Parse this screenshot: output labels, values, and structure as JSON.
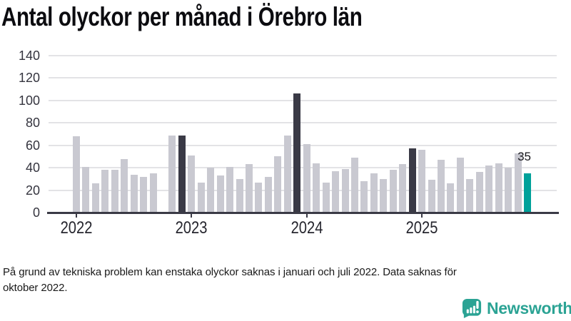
{
  "title": "Antal olyckor per månad i Örebro län",
  "footnote": {
    "lines": [
      "På grund av tekniska problem kan enstaka olyckor saknas i januari och juli 2022. Data saknas för",
      "oktober 2022."
    ]
  },
  "branding": {
    "name": "Newsworthy",
    "icon": "newsworthy-speech-bubble-bar-chart-icon",
    "color": "#2ba394"
  },
  "chart_data": {
    "type": "bar",
    "title": "Antal olyckor per månad i Örebro län",
    "xlabel": "",
    "ylabel": "",
    "ylim": [
      0,
      140
    ],
    "yticks": [
      0,
      20,
      40,
      60,
      80,
      100,
      120,
      140
    ],
    "x_unit": "month",
    "x_range_note": "48 monthly bars, January 2022 to December 2025; October 2022 has no bar (data missing)",
    "grid": true,
    "years": [
      {
        "year": "2022",
        "label": "2022",
        "values": [
          68,
          41,
          26,
          38,
          38,
          48,
          34,
          32,
          35,
          null,
          69,
          69
        ]
      },
      {
        "year": "2023",
        "label": "2023",
        "values": [
          51,
          27,
          40,
          33,
          41,
          30,
          43,
          27,
          32,
          50,
          69,
          106
        ]
      },
      {
        "year": "2024",
        "label": "2024",
        "values": [
          61,
          44,
          27,
          37,
          39,
          49,
          28,
          35,
          30,
          38,
          43,
          57
        ]
      },
      {
        "year": "2025",
        "label": "2025",
        "values": [
          56,
          29,
          47,
          26,
          49,
          30,
          36,
          42,
          44,
          40,
          53,
          35
        ]
      }
    ],
    "dark_months": [
      "2022-12",
      "2023-12",
      "2024-12"
    ],
    "accent_month": "2025-12",
    "value_label": "35",
    "colors": {
      "bar_default": "#c9c9d1",
      "bar_dark": "#3a3a46",
      "bar_accent": "#00a19a",
      "grid": "#e3e3e6",
      "axis": "#3a3a46"
    }
  }
}
